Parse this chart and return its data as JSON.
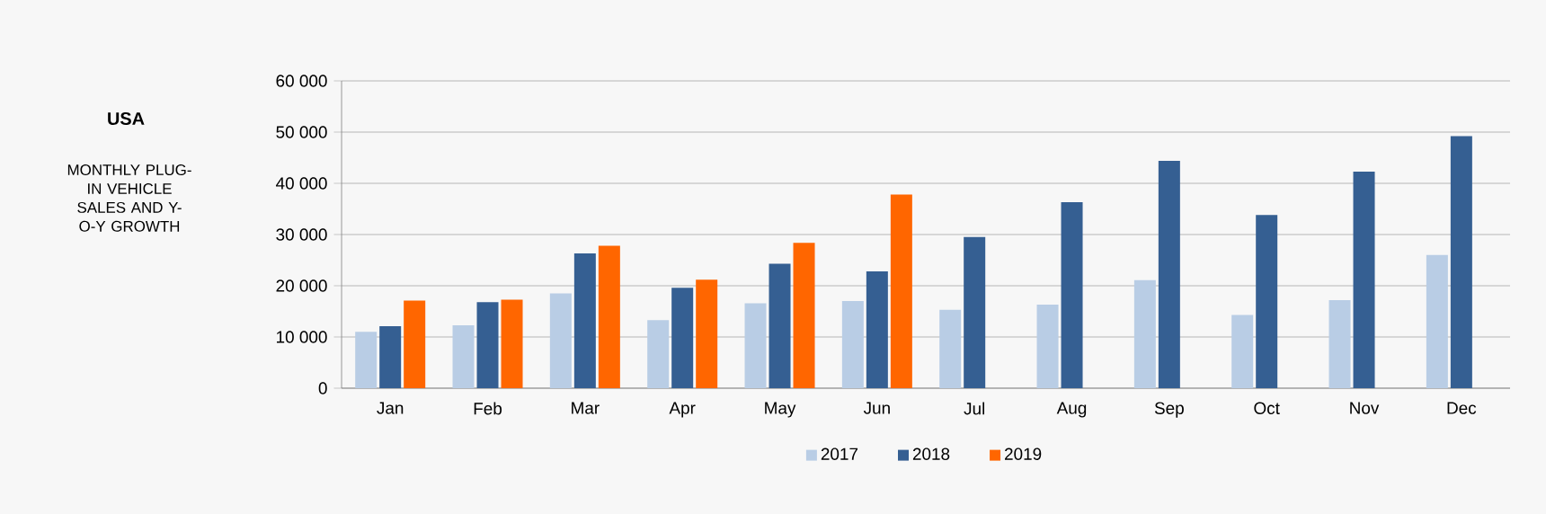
{
  "chart_data": {
    "type": "bar",
    "title": "USA",
    "subtitle": "MONTHLY PLUG-IN VEHICLE SALES AND Y-O-Y GROWTH",
    "categories": [
      "Jan",
      "Feb",
      "Mar",
      "Apr",
      "May",
      "Jun",
      "Jul",
      "Aug",
      "Sep",
      "Oct",
      "Nov",
      "Dec"
    ],
    "series": [
      {
        "name": "2017",
        "color": "#b9cde5",
        "values": [
          11000,
          12300,
          18500,
          13300,
          16600,
          17000,
          15300,
          16300,
          21100,
          14300,
          17200,
          26000
        ]
      },
      {
        "name": "2018",
        "color": "#355f92",
        "values": [
          12100,
          16800,
          26300,
          19600,
          24300,
          22800,
          29500,
          36300,
          44400,
          33800,
          42300,
          49200
        ]
      },
      {
        "name": "2019",
        "color": "#ff6600",
        "values": [
          17100,
          17300,
          27800,
          21200,
          28400,
          37800,
          null,
          null,
          null,
          null,
          null,
          null
        ]
      }
    ],
    "ylim": [
      0,
      60000
    ],
    "yticks": [
      {
        "value": 0,
        "label": "0"
      },
      {
        "value": 10000,
        "label": "10 000"
      },
      {
        "value": 20000,
        "label": "20 000"
      },
      {
        "value": 30000,
        "label": "30 000"
      },
      {
        "value": 40000,
        "label": "40 000"
      },
      {
        "value": 50000,
        "label": "50 000"
      },
      {
        "value": 60000,
        "label": "60 000"
      }
    ],
    "grid": "y",
    "legend": "bottom"
  }
}
